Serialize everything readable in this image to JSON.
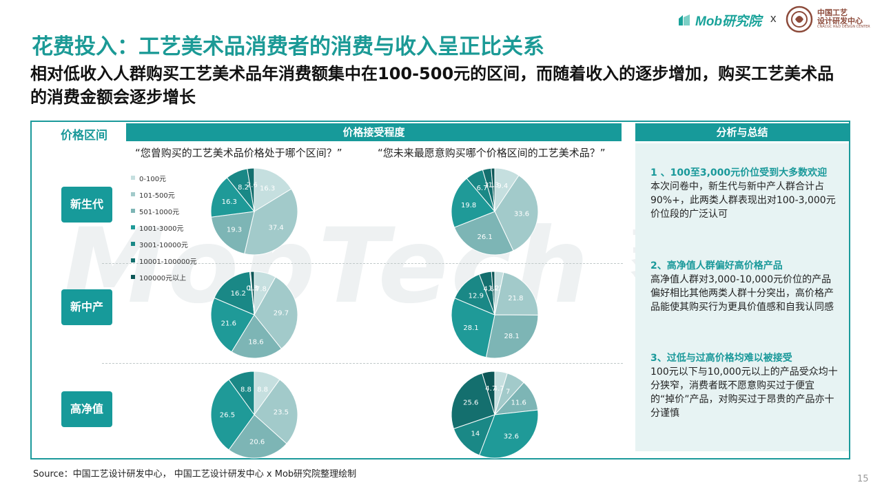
{
  "brand": {
    "mob_name": "Mob研究院",
    "separator": "x",
    "partner_line1": "中国工艺",
    "partner_line2": "设计研发中心",
    "partner_en": "CNACGC R&D DESIGN CENTER"
  },
  "watermark": {
    "text": "MobTech",
    "cn": "袤博"
  },
  "title": "花费投入：工艺美术品消费者的消费与收入呈正比关系",
  "subtitle": "相对低收入人群购买工艺美术品年消费额集中在100-500元的区间，而随着收入的逐步增加，购买工艺美术品的消费金额会逐步增长",
  "table": {
    "col1_header": "价格区间",
    "col2_header": "价格接受程度",
    "col3_header": "分析与总结",
    "question_past": "“您曾购买的工艺美术品价格处于哪个区间？”",
    "question_future": "“您未来最愿意购买哪个价格区间的工艺美术品？”",
    "rows": [
      {
        "label": "新生代"
      },
      {
        "label": "新中产"
      },
      {
        "label": "高净值"
      }
    ]
  },
  "analysis": [
    {
      "heading": "1 、100至3,000元价位受到大多数欢迎",
      "body": "本次问卷中，新生代与新中产人群合计占90%+，此两类人群表现出对100-3,000元价位段的广泛认可"
    },
    {
      "heading": "2、高净值人群偏好高价格产品",
      "body": "高净值人群对3,000-10,000元价位的产品偏好相比其他两类人群十分突出，高价格产品能使其购买行为更具价值感和自我认同感"
    },
    {
      "heading": "3、过低与过高价格均难以被接受",
      "body": "100元以下与10,000元以上的产品受众均十分狭窄，消费者既不愿意购买过于便宜的“掉价”产品，对购买过于昂贵的产品亦十分谨慎"
    }
  ],
  "chart_data": {
    "type": "pie",
    "categories": [
      "0-100元",
      "101-500元",
      "501-1000元",
      "1001-3000元",
      "3001-10000元",
      "10001-100000元",
      "100000元以上"
    ],
    "colors": [
      "#c5dfdf",
      "#a2caca",
      "#7db5b5",
      "#1f9a98",
      "#1a8886",
      "#146f6e",
      "#0d5757"
    ],
    "pies": [
      {
        "group": "新生代",
        "question": "past",
        "values": [
          16.3,
          37.4,
          19.3,
          16.3,
          8.2,
          2.6,
          0
        ],
        "labels": [
          "16.3",
          "37.4",
          "19.3",
          "16.3",
          "8.2",
          "2.6",
          ""
        ]
      },
      {
        "group": "新生代",
        "question": "future",
        "values": [
          9.4,
          33.6,
          26.1,
          19.8,
          6.7,
          3.2,
          1.3
        ],
        "labels": [
          "9.4",
          "33.6",
          "26.1",
          "19.8",
          "6.7",
          "3.2",
          "1.3"
        ]
      },
      {
        "group": "新中产",
        "question": "past",
        "values": [
          7.8,
          29.7,
          18.6,
          21.6,
          16.2,
          0.3,
          1.3
        ],
        "labels": [
          "7.8",
          "29.7",
          "18.6",
          "21.6",
          "16.2",
          "0.3",
          "1.3"
        ]
      },
      {
        "group": "新中产",
        "question": "future",
        "values": [
          3.3,
          21.8,
          28.1,
          28.1,
          12.9,
          4.6,
          1.2
        ],
        "labels": [
          "3.3",
          "21.8",
          "28.1",
          "28.1",
          "12.9",
          "4.6",
          "1.2"
        ]
      },
      {
        "group": "高净值",
        "question": "past",
        "values": [
          8.8,
          23.5,
          20.6,
          26.5,
          8.8,
          0,
          0
        ],
        "labels": [
          "8.8",
          "23.5",
          "20.6",
          "26.5",
          "8.8",
          "",
          ""
        ]
      },
      {
        "group": "高净值",
        "question": "future",
        "values": [
          4.7,
          7,
          11.6,
          32.6,
          14,
          25.6,
          4.7
        ],
        "labels": [
          "4.7",
          "7",
          "11.6",
          "32.6",
          "14",
          "25.6",
          "4.7"
        ]
      }
    ]
  },
  "source": "Source：中国工艺设计研发中心， 中国工艺设计研发中心 x Mob研究院整理绘制",
  "page_number": "15"
}
